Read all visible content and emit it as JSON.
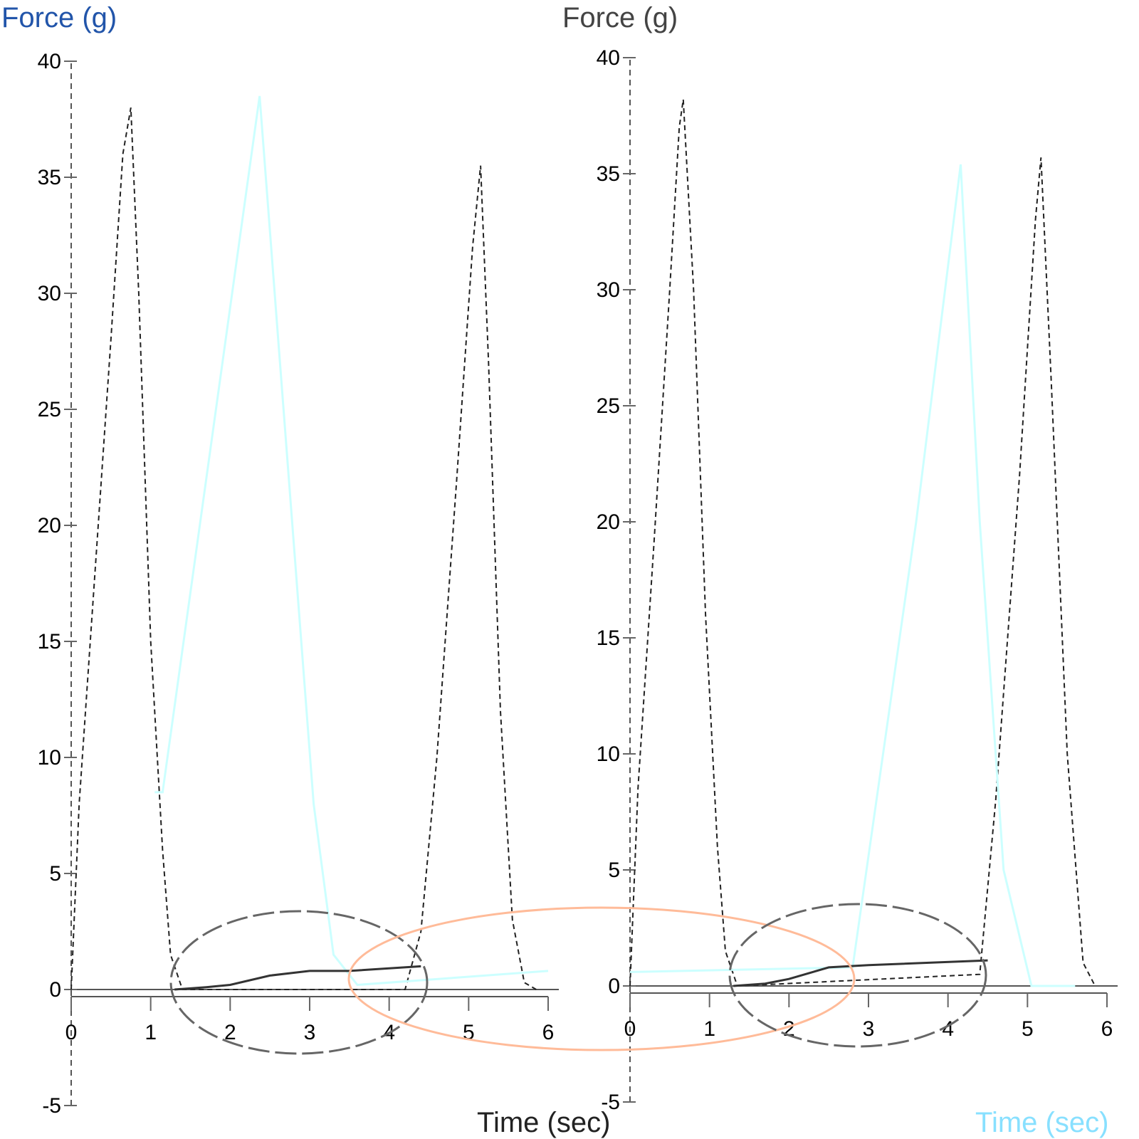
{
  "chart_data": [
    {
      "type": "line",
      "ylabel": "Force (g)",
      "xlabel": "Time (sec)",
      "xlim": [
        0,
        6
      ],
      "ylim": [
        -5,
        40
      ],
      "xticks": [
        "0",
        "1",
        "2",
        "3",
        "4",
        "5",
        "6"
      ],
      "yticks": [
        "-5",
        "0",
        "5",
        "10",
        "15",
        "20",
        "25",
        "30",
        "35",
        "40"
      ],
      "grid": false,
      "series": [
        {
          "style": "dashed",
          "color": "#222222",
          "points": [
            [
              0,
              0
            ],
            [
              0.1,
              8
            ],
            [
              0.3,
              18
            ],
            [
              0.5,
              28
            ],
            [
              0.65,
              36
            ],
            [
              0.75,
              38
            ],
            [
              0.85,
              30
            ],
            [
              1.0,
              15
            ],
            [
              1.15,
              6
            ],
            [
              1.25,
              1.5
            ],
            [
              1.4,
              0
            ],
            [
              4.2,
              0
            ],
            [
              4.4,
              2.5
            ],
            [
              4.6,
              10
            ],
            [
              4.85,
              22
            ],
            [
              5.05,
              32
            ],
            [
              5.15,
              35.5
            ],
            [
              5.25,
              27
            ],
            [
              5.4,
              12
            ],
            [
              5.55,
              3
            ],
            [
              5.7,
              0.3
            ],
            [
              5.85,
              0
            ]
          ]
        },
        {
          "style": "solid",
          "color": "#ccffff",
          "points": [
            [
              1.05,
              8.5
            ],
            [
              1.15,
              8.5
            ],
            [
              2.37,
              38.5
            ],
            [
              3.05,
              8
            ],
            [
              3.3,
              1.5
            ],
            [
              3.6,
              0.2
            ],
            [
              6,
              0.8
            ]
          ]
        },
        {
          "style": "solid",
          "color": "#333333",
          "points": [
            [
              1.3,
              0
            ],
            [
              1.7,
              0.1
            ],
            [
              2,
              0.2
            ],
            [
              2.5,
              0.6
            ],
            [
              3,
              0.8
            ],
            [
              3.5,
              0.8
            ],
            [
              4.4,
              1
            ]
          ]
        }
      ]
    },
    {
      "type": "line",
      "ylabel": "Force (g)",
      "xlabel": "Time (sec)",
      "xlim": [
        0,
        6
      ],
      "ylim": [
        -5,
        40
      ],
      "xticks": [
        "0",
        "1",
        "2",
        "3",
        "4",
        "5",
        "6"
      ],
      "yticks": [
        "-5",
        "0",
        "5",
        "10",
        "15",
        "20",
        "25",
        "30",
        "35",
        "40"
      ],
      "grid": false,
      "series": [
        {
          "style": "dashed",
          "color": "#222222",
          "points": [
            [
              0,
              0
            ],
            [
              0.1,
              8.5
            ],
            [
              0.3,
              19
            ],
            [
              0.5,
              30
            ],
            [
              0.62,
              37
            ],
            [
              0.67,
              38.2
            ],
            [
              0.8,
              30
            ],
            [
              0.95,
              16
            ],
            [
              1.1,
              6
            ],
            [
              1.2,
              1.5
            ],
            [
              1.35,
              0
            ],
            [
              4.4,
              0.5
            ],
            [
              4.6,
              8
            ],
            [
              4.9,
              22
            ],
            [
              5.1,
              33
            ],
            [
              5.17,
              35.7
            ],
            [
              5.3,
              26
            ],
            [
              5.5,
              10
            ],
            [
              5.7,
              1
            ],
            [
              5.85,
              0
            ]
          ]
        },
        {
          "style": "solid",
          "color": "#ccffff",
          "points": [
            [
              0,
              0.6
            ],
            [
              2.8,
              0.8
            ],
            [
              3.6,
              20
            ],
            [
              4.16,
              35.4
            ],
            [
              4.4,
              20
            ],
            [
              4.7,
              5
            ],
            [
              5.05,
              0
            ],
            [
              5.6,
              0
            ]
          ]
        },
        {
          "style": "solid",
          "color": "#333333",
          "points": [
            [
              1.3,
              0
            ],
            [
              1.7,
              0.1
            ],
            [
              2,
              0.3
            ],
            [
              2.5,
              0.8
            ],
            [
              3,
              0.9
            ],
            [
              4.5,
              1.1
            ]
          ]
        }
      ]
    }
  ],
  "annotations": {
    "ellipse_colors": [
      "#666666",
      "#ffbb99",
      "#666666"
    ]
  }
}
